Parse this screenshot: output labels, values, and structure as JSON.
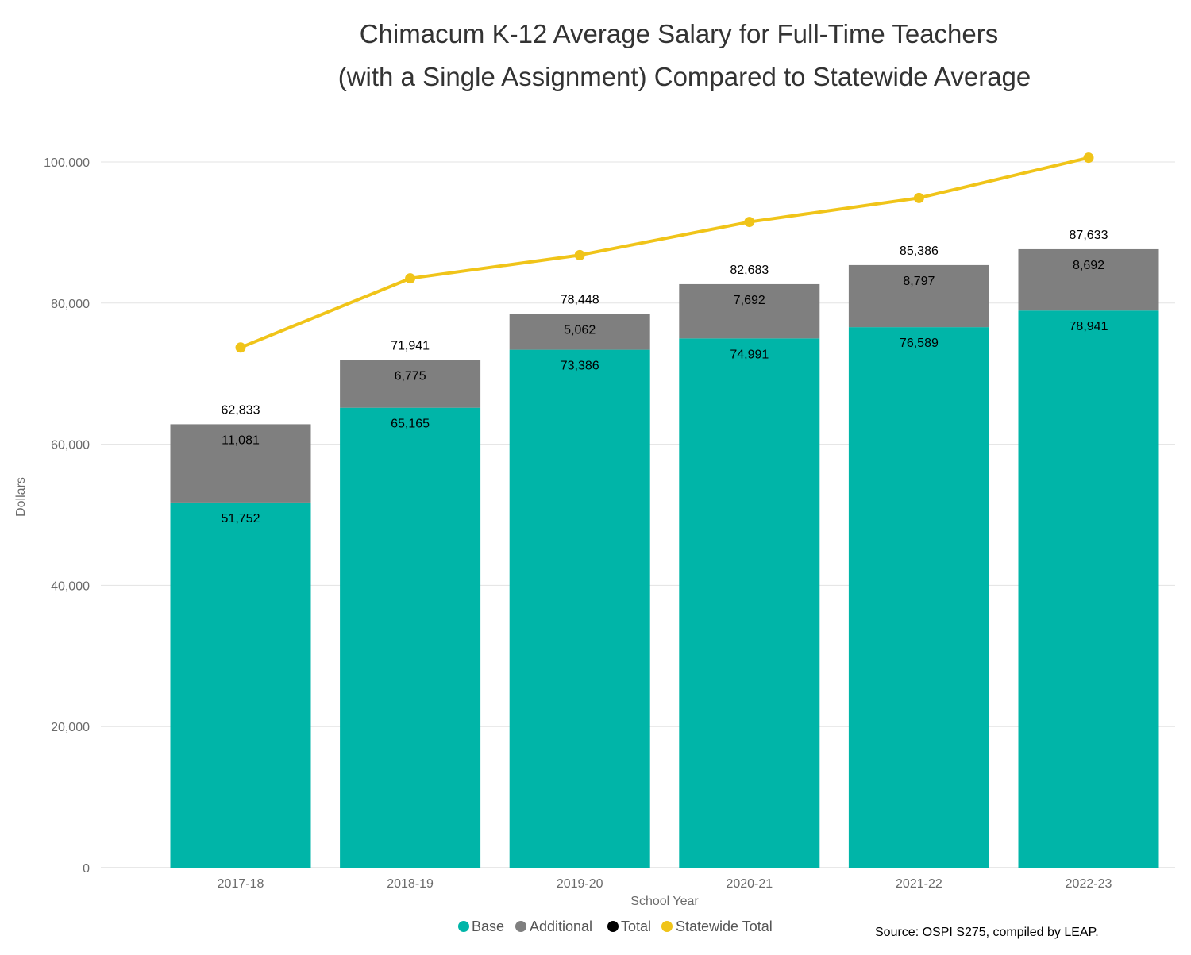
{
  "chart_data": {
    "type": "bar",
    "stacked": true,
    "title_lines": [
      "Chimacum K-12 Average Salary for Full-Time Teachers",
      "(with a Single Assignment) Compared to Statewide Average"
    ],
    "xlabel": "School Year",
    "ylabel": "Dollars",
    "categories": [
      "2017-18",
      "2018-19",
      "2019-20",
      "2020-21",
      "2021-22",
      "2022-23"
    ],
    "ylim": [
      0,
      100000
    ],
    "yticks": [
      0,
      20000,
      40000,
      60000,
      80000,
      100000
    ],
    "ytick_labels": [
      "0",
      "20,000",
      "40,000",
      "60,000",
      "80,000",
      "100,000"
    ],
    "grid": true,
    "series": [
      {
        "name": "Base",
        "type": "bar",
        "color": "#00b5a8",
        "values": [
          51752,
          65165,
          73386,
          74991,
          76589,
          78941
        ],
        "labels": [
          "51,752",
          "65,165",
          "73,386",
          "74,991",
          "76,589",
          "78,941"
        ]
      },
      {
        "name": "Additional",
        "type": "bar",
        "color": "#7f7f7f",
        "values": [
          11081,
          6775,
          5062,
          7692,
          8797,
          8692
        ],
        "labels": [
          "11,081",
          "6,775",
          "5,062",
          "7,692",
          "8,797",
          "8,692"
        ]
      },
      {
        "name": "Total",
        "type": "label",
        "color": "#000000",
        "values": [
          62833,
          71941,
          78448,
          82683,
          85386,
          87633
        ],
        "labels": [
          "62,833",
          "71,941",
          "78,448",
          "82,683",
          "85,386",
          "87,633"
        ]
      },
      {
        "name": "Statewide Total",
        "type": "line",
        "color": "#f0c419",
        "values": [
          73700,
          83500,
          86800,
          91500,
          94900,
          100600
        ]
      }
    ],
    "legend_position": "bottom-center",
    "source": "Source: OSPI S275, compiled by LEAP."
  }
}
